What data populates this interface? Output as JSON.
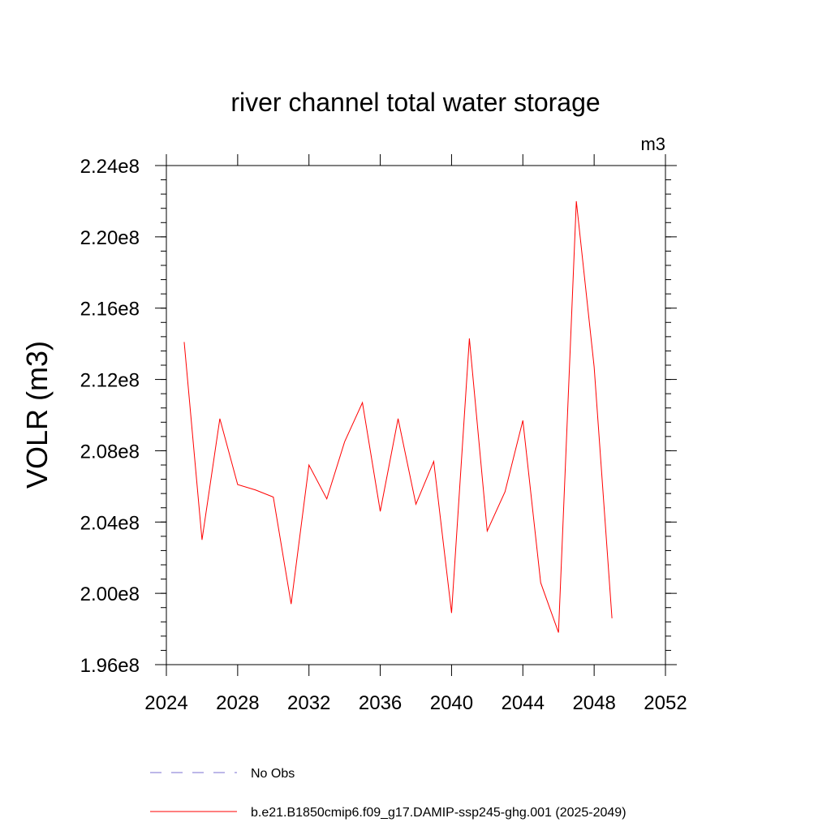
{
  "chart_data": {
    "type": "line",
    "title": "river channel total water storage",
    "units": "m3",
    "ylabel": "VOLR  (m3)",
    "xlabel": "",
    "xlim": [
      2024,
      2052
    ],
    "ylim": [
      196000000.0,
      224000000.0
    ],
    "x_ticks": [
      2024,
      2028,
      2032,
      2036,
      2040,
      2044,
      2048,
      2052
    ],
    "x_tick_labels": [
      "2024",
      "2028",
      "2032",
      "2036",
      "2040",
      "2044",
      "2048",
      "2052"
    ],
    "y_ticks": [
      196000000.0,
      200000000.0,
      204000000.0,
      208000000.0,
      212000000.0,
      216000000.0,
      220000000.0,
      224000000.0
    ],
    "y_tick_labels": [
      "1.96e8",
      "2.00e8",
      "2.04e8",
      "2.08e8",
      "2.12e8",
      "2.16e8",
      "2.20e8",
      "2.24e8"
    ],
    "grid": false,
    "legend_position": "bottom",
    "series": [
      {
        "name": "No Obs",
        "color": "#7b6fd0",
        "dash": "dashed",
        "x": [],
        "values": []
      },
      {
        "name": "b.e21.B1850cmip6.f09_g17.DAMIP-ssp245-ghg.001 (2025-2049)",
        "color": "#ff0000",
        "dash": "solid",
        "x": [
          2025,
          2026,
          2027,
          2028,
          2029,
          2030,
          2031,
          2032,
          2033,
          2034,
          2035,
          2036,
          2037,
          2038,
          2039,
          2040,
          2041,
          2042,
          2043,
          2044,
          2045,
          2046,
          2047,
          2048,
          2049
        ],
        "values": [
          214100000.0,
          203000000.0,
          209800000.0,
          206100000.0,
          205800000.0,
          205400000.0,
          199400000.0,
          207200000.0,
          205300000.0,
          208500000.0,
          210700000.0,
          204600000.0,
          209800000.0,
          205000000.0,
          207400000.0,
          198900000.0,
          214300000.0,
          203500000.0,
          205700000.0,
          209700000.0,
          200600000.0,
          197800000.0,
          222000000.0,
          212700000.0,
          198600000.0
        ]
      }
    ]
  }
}
